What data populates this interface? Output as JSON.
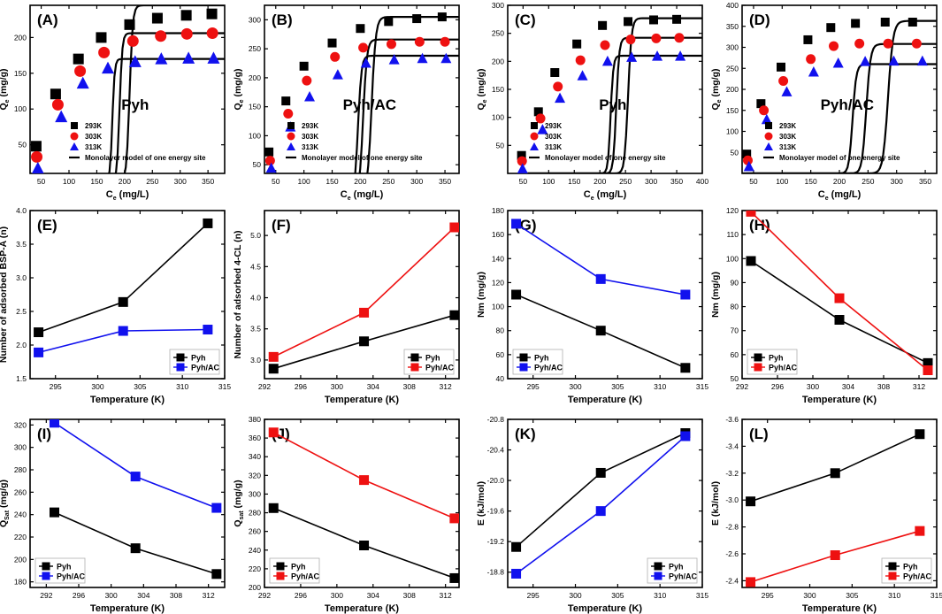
{
  "figure": {
    "background": "#ffffff"
  },
  "styles": {
    "black": "#000000",
    "red": "#ee1111",
    "blue": "#1111ee",
    "gray": "#b0b0b0"
  },
  "chart_data": [
    {
      "id": "A",
      "panel_label": "(A)",
      "type": "scatter",
      "title": "",
      "in_text": "Pyh",
      "xlabel": "C",
      "xlabel_sub": "e",
      "xlabel_tail": " (mg/L)",
      "ylabel": "Q",
      "ylabel_sub": "e",
      "ylabel_tail": " (mg/g)",
      "xlim": [
        30,
        380
      ],
      "ylim": [
        10,
        245
      ],
      "xticks": [
        50,
        100,
        150,
        200,
        250,
        300,
        350
      ],
      "yticks": [
        50,
        100,
        150,
        200
      ],
      "marker_size": "large",
      "legend": {
        "placement": "bottom-right",
        "model_label": "Monolayer model of one energy site"
      },
      "series": [
        {
          "name": "293K",
          "color_key": "black",
          "marker": "square",
          "x": [
            41,
            76,
            117,
            158,
            209,
            259,
            311,
            357
          ],
          "y": [
            48,
            121,
            170,
            200,
            218,
            227,
            231,
            233
          ],
          "fit": [
            34,
            62,
            175,
            245
          ]
        },
        {
          "name": "303K",
          "color_key": "red",
          "marker": "circle",
          "x": [
            42,
            80,
            120,
            163,
            215,
            265,
            312,
            358
          ],
          "y": [
            33,
            106,
            153,
            179,
            195,
            202,
            205,
            206
          ],
          "fit": [
            43,
            62,
            148,
            206
          ]
        },
        {
          "name": "313K",
          "color_key": "blue",
          "marker": "triangle",
          "x": [
            44,
            86,
            125,
            170,
            219,
            266,
            315,
            360
          ],
          "y": [
            17,
            89,
            136,
            157,
            166,
            170,
            171,
            171
          ],
          "fit": [
            50,
            62,
            128,
            170
          ]
        }
      ]
    },
    {
      "id": "B",
      "panel_label": "(B)",
      "type": "scatter",
      "in_text": "Pyh/AC",
      "xlabel": "C",
      "xlabel_sub": "e",
      "xlabel_tail": " (mg/L)",
      "ylabel": "Q",
      "ylabel_sub": "e",
      "ylabel_tail": " (mg/g)",
      "xlim": [
        30,
        375
      ],
      "ylim": [
        35,
        325
      ],
      "xticks": [
        50,
        100,
        150,
        200,
        250,
        300,
        350
      ],
      "yticks": [
        50,
        100,
        150,
        200,
        250,
        300
      ],
      "marker_size": "small",
      "legend": {
        "placement": "bottom-right",
        "model_label": "Monolayer model of one energy site"
      },
      "series": [
        {
          "name": "293K",
          "color_key": "black",
          "marker": "square",
          "x": [
            38,
            68,
            100,
            150,
            200,
            250,
            300,
            345
          ],
          "y": [
            72,
            160,
            220,
            260,
            285,
            297,
            302,
            305
          ],
          "fit": [
            20,
            55,
            200,
            305
          ]
        },
        {
          "name": "303K",
          "color_key": "red",
          "marker": "circle",
          "x": [
            40,
            72,
            105,
            155,
            205,
            255,
            305,
            350
          ],
          "y": [
            57,
            138,
            195,
            236,
            252,
            258,
            262,
            262
          ],
          "fit": [
            25,
            55,
            180,
            266
          ]
        },
        {
          "name": "313K",
          "color_key": "blue",
          "marker": "triangle",
          "x": [
            42,
            76,
            110,
            160,
            210,
            260,
            310,
            352
          ],
          "y": [
            44,
            115,
            167,
            205,
            225,
            231,
            233,
            233
          ],
          "fit": [
            31,
            55,
            165,
            238
          ]
        }
      ]
    },
    {
      "id": "C",
      "panel_label": "(C)",
      "type": "scatter",
      "in_text": "Pyh",
      "xlabel": "C",
      "xlabel_sub": "e",
      "xlabel_tail": " (mg/L)",
      "ylabel": "Q",
      "ylabel_sub": "e",
      "ylabel_tail": " (mg/g)",
      "xlim": [
        20,
        400
      ],
      "ylim": [
        0,
        300
      ],
      "xticks": [
        50,
        100,
        150,
        200,
        250,
        300,
        350,
        400
      ],
      "yticks": [
        50,
        100,
        150,
        200,
        250,
        300
      ],
      "marker_size": "small",
      "legend": {
        "placement": "bottom-right",
        "model_label": "Monolayer model of one energy site"
      },
      "series": [
        {
          "name": "293K",
          "color_key": "black",
          "marker": "square",
          "x": [
            47,
            80,
            112,
            155,
            205,
            255,
            305,
            350
          ],
          "y": [
            32,
            110,
            180,
            231,
            264,
            271,
            274,
            275
          ],
          "fit": [
            45,
            62,
            210,
            277
          ]
        },
        {
          "name": "303K",
          "color_key": "red",
          "marker": "circle",
          "x": [
            48,
            84,
            118,
            162,
            210,
            260,
            310,
            355
          ],
          "y": [
            22,
            98,
            155,
            202,
            229,
            239,
            241,
            242
          ],
          "fit": [
            52,
            62,
            180,
            242
          ]
        },
        {
          "name": "313K",
          "color_key": "blue",
          "marker": "triangle",
          "x": [
            49,
            88,
            122,
            166,
            215,
            262,
            312,
            357
          ],
          "y": [
            8,
            78,
            134,
            174,
            200,
            207,
            209,
            209
          ],
          "fit": [
            61,
            62,
            160,
            210
          ]
        }
      ]
    },
    {
      "id": "D",
      "panel_label": "(D)",
      "type": "scatter",
      "in_text": "Pyh/AC",
      "xlabel": "C",
      "xlabel_sub": "e",
      "xlabel_tail": " (mg/L)",
      "ylabel": "Q",
      "ylabel_sub": "e",
      "ylabel_tail": " (mg/g)",
      "xlim": [
        30,
        370
      ],
      "ylim": [
        0,
        400
      ],
      "xticks": [
        50,
        100,
        150,
        200,
        250,
        300,
        350
      ],
      "yticks": [
        50,
        100,
        150,
        200,
        250,
        300,
        350,
        400
      ],
      "marker_size": "small",
      "legend": {
        "placement": "bottom-right",
        "model_label": "Monolayer model of one energy site"
      },
      "series": [
        {
          "name": "293K",
          "color_key": "black",
          "marker": "square",
          "x": [
            38,
            63,
            98,
            145,
            185,
            228,
            280,
            328
          ],
          "y": [
            46,
            166,
            253,
            318,
            347,
            357,
            360,
            360
          ],
          "fit": [
            30,
            58,
            255,
            363
          ]
        },
        {
          "name": "303K",
          "color_key": "red",
          "marker": "circle",
          "x": [
            40,
            68,
            102,
            150,
            190,
            235,
            285,
            335
          ],
          "y": [
            31,
            150,
            220,
            272,
            303,
            309,
            309,
            309
          ],
          "fit": [
            32,
            58,
            215,
            308
          ]
        },
        {
          "name": "313K",
          "color_key": "blue",
          "marker": "triangle",
          "x": [
            42,
            73,
            108,
            155,
            198,
            245,
            295,
            345
          ],
          "y": [
            16,
            128,
            194,
            241,
            262,
            266,
            267,
            267
          ],
          "fit": [
            38,
            58,
            185,
            260
          ]
        }
      ]
    },
    {
      "id": "E",
      "panel_label": "(E)",
      "type": "line",
      "xlabel": "Temperature (K)",
      "ylabel": "Number of adsorbed BSP-A (n)",
      "xlim": [
        292,
        315
      ],
      "ylim": [
        1.5,
        4.0
      ],
      "xticks": [
        295,
        300,
        305,
        310,
        315
      ],
      "yticks": [
        1.5,
        2.0,
        2.5,
        3.0,
        3.5,
        4.0
      ],
      "ytick_decimals": 1,
      "legend": {
        "placement": "bottom-right"
      },
      "series": [
        {
          "name": "Pyh",
          "color_key": "black",
          "x": [
            293,
            303,
            313
          ],
          "y": [
            2.19,
            2.64,
            3.81
          ]
        },
        {
          "name": "Pyh/AC",
          "color_key": "blue",
          "x": [
            293,
            303,
            313
          ],
          "y": [
            1.89,
            2.21,
            2.23
          ]
        }
      ]
    },
    {
      "id": "F",
      "panel_label": "(F)",
      "type": "line",
      "xlabel": "Temperature (K)",
      "ylabel": "Number of adsorbed 4-CL (n)",
      "xlim": [
        292,
        313.5
      ],
      "ylim": [
        2.7,
        5.4
      ],
      "xticks": [
        292,
        296,
        300,
        304,
        308,
        312
      ],
      "yticks": [
        3.0,
        3.5,
        4.0,
        4.5,
        5.0
      ],
      "ytick_decimals": 1,
      "legend": {
        "placement": "bottom-right"
      },
      "series": [
        {
          "name": "Pyh",
          "color_key": "black",
          "x": [
            293,
            303,
            313
          ],
          "y": [
            2.86,
            3.3,
            3.72
          ]
        },
        {
          "name": "Pyh/AC",
          "color_key": "red",
          "x": [
            293,
            303,
            313
          ],
          "y": [
            3.05,
            3.76,
            5.13
          ]
        }
      ]
    },
    {
      "id": "G",
      "panel_label": "(G)",
      "type": "line",
      "xlabel": "Temperature (K)",
      "ylabel": "Nm (mg/g)",
      "xlim": [
        292,
        315
      ],
      "ylim": [
        40,
        180
      ],
      "xticks": [
        295,
        300,
        305,
        310,
        315
      ],
      "yticks": [
        40,
        60,
        80,
        100,
        120,
        140,
        160,
        180
      ],
      "ytick_decimals": 0,
      "legend": {
        "placement": "bottom-left"
      },
      "series": [
        {
          "name": "Pyh",
          "color_key": "black",
          "x": [
            293,
            303,
            313
          ],
          "y": [
            110,
            80,
            49
          ]
        },
        {
          "name": "Pyh/AC",
          "color_key": "blue",
          "x": [
            293,
            303,
            313
          ],
          "y": [
            169,
            123,
            110
          ]
        }
      ]
    },
    {
      "id": "H",
      "panel_label": "(H)",
      "type": "line",
      "xlabel": "Temperature (K)",
      "ylabel": "Nm (mg/g)",
      "xlim": [
        292,
        314
      ],
      "ylim": [
        50,
        120
      ],
      "xticks": [
        292,
        296,
        300,
        304,
        308,
        312
      ],
      "yticks": [
        50,
        60,
        70,
        80,
        90,
        100,
        110,
        120
      ],
      "ytick_decimals": 0,
      "legend": {
        "placement": "bottom-left"
      },
      "series": [
        {
          "name": "Pyh",
          "color_key": "black",
          "x": [
            293,
            303,
            313
          ],
          "y": [
            99,
            74.5,
            56.5
          ]
        },
        {
          "name": "Pyh/AC",
          "color_key": "red",
          "x": [
            293,
            303,
            313
          ],
          "y": [
            119.5,
            83.5,
            53.5
          ]
        }
      ]
    },
    {
      "id": "I",
      "panel_label": "(I)",
      "type": "line",
      "xlabel": "Temperature (K)",
      "ylabel": "Q",
      "ylabel_sub": "Sat",
      "ylabel_tail": " (mg/g)",
      "xlim": [
        290,
        314
      ],
      "ylim": [
        175,
        325
      ],
      "xticks": [
        292,
        296,
        300,
        304,
        308,
        312
      ],
      "yticks": [
        180,
        200,
        220,
        240,
        260,
        280,
        300,
        320
      ],
      "ytick_decimals": 0,
      "legend": {
        "placement": "bottom-left"
      },
      "series": [
        {
          "name": "Pyh",
          "color_key": "black",
          "x": [
            293,
            303,
            313
          ],
          "y": [
            242,
            210,
            187
          ]
        },
        {
          "name": "Pyh/AC",
          "color_key": "blue",
          "x": [
            293,
            303,
            313
          ],
          "y": [
            322,
            274,
            246
          ]
        }
      ]
    },
    {
      "id": "J",
      "panel_label": "(J)",
      "type": "line",
      "xlabel": "Temperature (K)",
      "ylabel": "Q",
      "ylabel_sub": "sat",
      "ylabel_tail": " (mg/g)",
      "xlim": [
        292,
        313.5
      ],
      "ylim": [
        200,
        380
      ],
      "xticks": [
        292,
        296,
        300,
        304,
        308,
        312
      ],
      "yticks": [
        200,
        220,
        240,
        260,
        280,
        300,
        320,
        340,
        360,
        380
      ],
      "ytick_decimals": 0,
      "legend": {
        "placement": "bottom-left"
      },
      "series": [
        {
          "name": "Pyh",
          "color_key": "black",
          "x": [
            293,
            303,
            313
          ],
          "y": [
            285,
            245,
            210
          ]
        },
        {
          "name": "Pyh/AC",
          "color_key": "red",
          "x": [
            293,
            303,
            313
          ],
          "y": [
            366,
            315,
            274
          ]
        }
      ]
    },
    {
      "id": "K",
      "panel_label": "(K)",
      "type": "line",
      "xlabel": "Temperature (K)",
      "ylabel": "E (kJ/mol)",
      "xlim": [
        292,
        315
      ],
      "ylim": [
        -18.6,
        -20.8
      ],
      "reverse_y": true,
      "xticks": [
        295,
        300,
        305,
        310,
        315
      ],
      "yticks": [
        -18.8,
        -19.2,
        -19.6,
        -20.0,
        -20.4,
        -20.8
      ],
      "ytick_decimals": 1,
      "legend": {
        "placement": "bottom-right"
      },
      "series": [
        {
          "name": "Pyh",
          "color_key": "black",
          "x": [
            293,
            303,
            313
          ],
          "y": [
            -19.13,
            -20.1,
            -20.62
          ]
        },
        {
          "name": "Pyh/AC",
          "color_key": "blue",
          "x": [
            293,
            303,
            313
          ],
          "y": [
            -18.78,
            -19.6,
            -20.58
          ]
        }
      ]
    },
    {
      "id": "L",
      "panel_label": "(L)",
      "type": "line",
      "xlabel": "Temperature (K)",
      "ylabel": "E (kJ/mol)",
      "xlim": [
        292,
        315
      ],
      "ylim": [
        -2.35,
        -3.6
      ],
      "reverse_y": true,
      "xticks": [
        295,
        300,
        305,
        310,
        315
      ],
      "yticks": [
        -2.4,
        -2.6,
        -2.8,
        -3.0,
        -3.2,
        -3.4,
        -3.6
      ],
      "ytick_decimals": 1,
      "legend": {
        "placement": "bottom-right"
      },
      "series": [
        {
          "name": "Pyh",
          "color_key": "black",
          "x": [
            293,
            303,
            313
          ],
          "y": [
            -2.99,
            -3.2,
            -3.49
          ]
        },
        {
          "name": "Pyh/AC",
          "color_key": "red",
          "x": [
            293,
            303,
            313
          ],
          "y": [
            -2.39,
            -2.59,
            -2.77
          ]
        }
      ]
    }
  ]
}
